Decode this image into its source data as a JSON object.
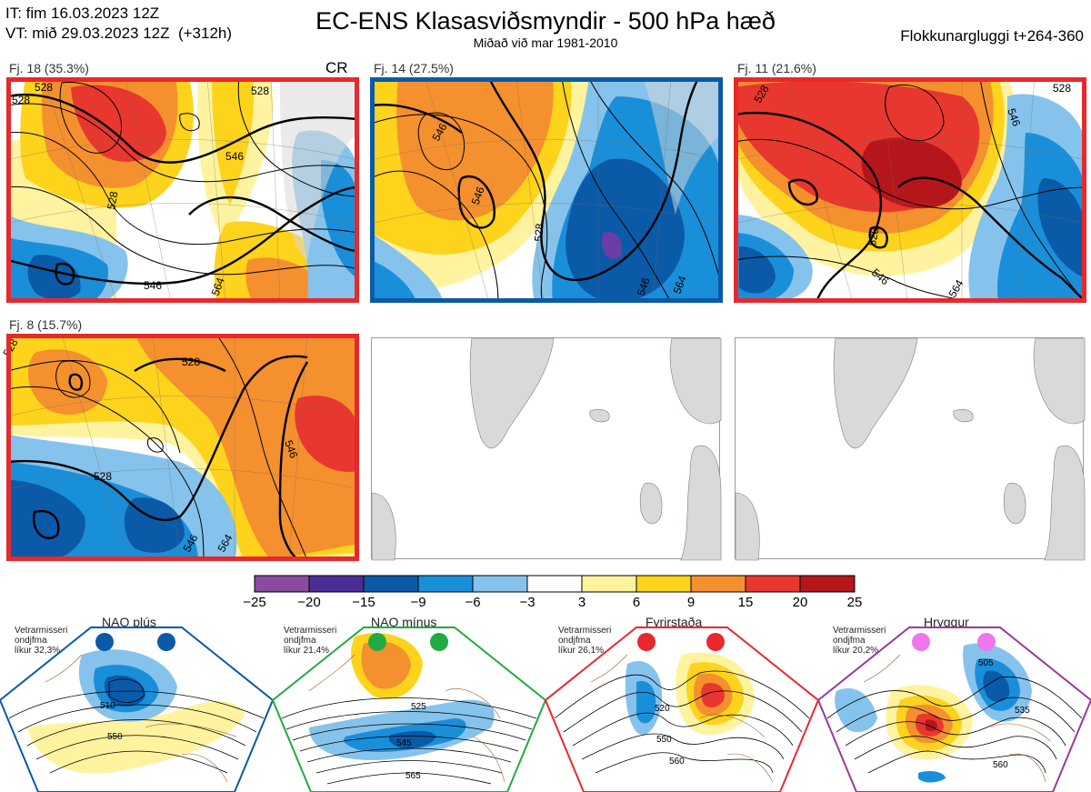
{
  "header": {
    "it_line": "IT: fim 16.03.2023 12Z",
    "vt_line": "VT: mið 29.03.2023 12Z  (+312h)",
    "title": "EC-ENS Klasasviðsmyndir - 500 hPa hæð",
    "subtitle": "Miðað við mar 1981-2010",
    "window": "Flokkunargluggi t+264-360"
  },
  "panels": [
    {
      "label": "Fj. 18 (35.3%)",
      "tag": "CR",
      "frame_color": "#e8282d"
    },
    {
      "label": "Fj. 14 (27.5%)",
      "tag": "",
      "frame_color": "#0a5aa8"
    },
    {
      "label": "Fj. 11 (21.6%)",
      "tag": "",
      "frame_color": "#e8282d"
    },
    {
      "label": "Fj. 8 (15.7%)",
      "tag": "",
      "frame_color": "#e8282d"
    }
  ],
  "contour_labels": {
    "p1": [
      "528",
      "528",
      "528",
      "546",
      "528",
      "546",
      "564"
    ],
    "p2": [
      "546",
      "528",
      "546",
      "546",
      "564"
    ],
    "p3": [
      "528",
      "528",
      "546",
      "546",
      "528",
      "564"
    ],
    "p4": [
      "528",
      "528",
      "528",
      "546",
      "546",
      "564"
    ]
  },
  "colorbar": {
    "ticks": [
      "−25",
      "−20",
      "−15",
      "−9",
      "−6",
      "−3",
      "3",
      "6",
      "9",
      "15",
      "20",
      "25"
    ],
    "colors": [
      "#8a4a9e",
      "#4b2e95",
      "#0a5aa8",
      "#1a8fd9",
      "#86c3ec",
      "#ffffff",
      "#fff3a0",
      "#fdd31c",
      "#f5902e",
      "#e8372f",
      "#b5161c"
    ]
  },
  "chart_data": {
    "type": "heatmap",
    "title": "EC-ENS Klasasviðsmyndir - 500 hPa hæð",
    "subtitle": "Miðað við mar 1981-2010",
    "colorbar_bounds": [
      -25,
      -20,
      -15,
      -9,
      -6,
      -3,
      3,
      6,
      9,
      15,
      20,
      25
    ],
    "clusters": [
      {
        "name": "Fj. 18",
        "probability_pct": 35.3
      },
      {
        "name": "Fj. 14",
        "probability_pct": 27.5
      },
      {
        "name": "Fj. 11",
        "probability_pct": 21.6
      },
      {
        "name": "Fj. 8",
        "probability_pct": 15.7
      }
    ],
    "regimes": [
      {
        "name": "NAO plús",
        "likelihood_pct": 32.3
      },
      {
        "name": "NAO mínus",
        "likelihood_pct": 21.4
      },
      {
        "name": "Fyrirstaða",
        "likelihood_pct": 26.1
      },
      {
        "name": "Hryggur",
        "likelihood_pct": 20.2
      }
    ]
  },
  "regimes": [
    {
      "name": "NAO plús",
      "season": "Vetrarmisseri",
      "kind": "ondjfma",
      "prob": "líkur 32,3%",
      "color": "#0a5aa8",
      "labels": [
        "510",
        "550"
      ]
    },
    {
      "name": "NAO mínus",
      "season": "Vetrarmisseri",
      "kind": "ondjfma",
      "prob": "líkur 21,4%",
      "color": "#22aa44",
      "labels": [
        "525",
        "545",
        "565"
      ]
    },
    {
      "name": "Fyrirstaða",
      "season": "Vetrarmisseri",
      "kind": "ondjfma",
      "prob": "líkur 26,1%",
      "color": "#e8282d",
      "labels": [
        "520",
        "550",
        "560"
      ]
    },
    {
      "name": "Hryggur",
      "season": "Vetrarmisseri",
      "kind": "ondjfma",
      "prob": "líkur 20,2%",
      "color": "#9a3a9a",
      "labels": [
        "505",
        "535",
        "560"
      ]
    }
  ]
}
